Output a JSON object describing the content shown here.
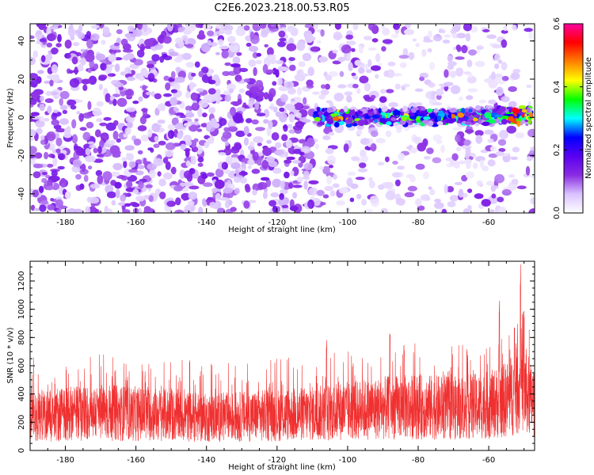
{
  "title": "C2E6.2023.218.00.53.R05",
  "colors": {
    "snr_line": "#f03030",
    "frame": "#000000",
    "background": "#ffffff"
  },
  "chart_data": [
    {
      "type": "heatmap",
      "xlabel": "Height of straight line (km)",
      "ylabel": "Frequency (Hz)",
      "xlim": [
        -190,
        -47
      ],
      "ylim": [
        -50,
        49
      ],
      "x_ticks": [
        "-180",
        "-160",
        "-140",
        "-120",
        "-100",
        "-80",
        "-60"
      ],
      "y_ticks": [
        "-40",
        "-20",
        "0",
        "20",
        "40"
      ],
      "grid": false,
      "colorbar": {
        "label": "Normalized spectral amplitude",
        "range": [
          0.0,
          0.6
        ],
        "ticks": [
          "0.0",
          "0.2",
          "0.4",
          "0.6"
        ],
        "colormap": [
          "#ffffff",
          "#d9c2ff",
          "#8a2be2",
          "#5a00f0",
          "#0000ff",
          "#00ffff",
          "#00ff00",
          "#ffff00",
          "#ff8000",
          "#ff0000",
          "#ff00a0"
        ]
      },
      "signal_band": {
        "x_range": [
          -109,
          -48
        ],
        "frequency_center": [
          0,
          1
        ],
        "frequency_halfwidth": 3,
        "peak_amplitude": 0.55
      },
      "noise_level": {
        "left_half_strong_to": -110,
        "right_faint_from": -110
      }
    },
    {
      "type": "line",
      "xlabel": "Height of straight line (km)",
      "ylabel": "SNR (10 * v/v)",
      "xlim": [
        -190,
        -47
      ],
      "ylim": [
        0,
        1340
      ],
      "x_ticks": [
        "-180",
        "-160",
        "-140",
        "-120",
        "-100",
        "-80",
        "-60"
      ],
      "y_ticks": [
        "0",
        "200",
        "400",
        "600",
        "800",
        "1000",
        "1200"
      ],
      "grid": false,
      "series": [
        {
          "description_points": [
            [
              -190,
              250
            ],
            [
              -180,
              260
            ],
            [
              -170,
              270
            ],
            [
              -160,
              260
            ],
            [
              -150,
              250
            ],
            [
              -140,
              230
            ],
            [
              -130,
              240
            ],
            [
              -120,
              250
            ],
            [
              -110,
              260
            ],
            [
              -100,
              280
            ],
            [
              -90,
              300
            ],
            [
              -80,
              310
            ],
            [
              -70,
              300
            ],
            [
              -60,
              320
            ],
            [
              -55,
              360
            ],
            [
              -52,
              420
            ],
            [
              -50,
              450
            ],
            [
              -48,
              350
            ]
          ],
          "peaks": [
            [
              -88,
              860
            ],
            [
              -84,
              770
            ],
            [
              -106,
              790
            ],
            [
              -57,
              1070
            ],
            [
              -51,
              1340
            ],
            [
              -50,
              1000
            ]
          ]
        }
      ]
    }
  ]
}
